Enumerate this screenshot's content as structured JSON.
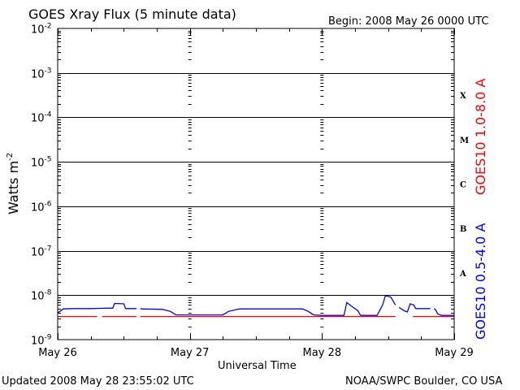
{
  "chart_data": {
    "type": "line",
    "title": "GOES Xray Flux (5 minute data)",
    "begin_label": "Begin:  2008 May 26 0000 UTC",
    "ylabel": "Watts m",
    "ylabel_superscript": "-2",
    "xlabel": "Universal Time",
    "x_tick_labels": [
      "May 26",
      "May 27",
      "May 28",
      "May 29"
    ],
    "x_range": [
      "2008-05-26 00:00",
      "2008-05-29 00:00"
    ],
    "y_scale": "log",
    "ylim": [
      1e-09,
      0.01
    ],
    "y_tick_labels": [
      {
        "base": "10",
        "exp": "-9"
      },
      {
        "base": "10",
        "exp": "-8"
      },
      {
        "base": "10",
        "exp": "-7"
      },
      {
        "base": "10",
        "exp": "-6"
      },
      {
        "base": "10",
        "exp": "-5"
      },
      {
        "base": "10",
        "exp": "-4"
      },
      {
        "base": "10",
        "exp": "-3"
      },
      {
        "base": "10",
        "exp": "-2"
      }
    ],
    "flare_classes": [
      "A",
      "B",
      "C",
      "M",
      "X"
    ],
    "grid": true,
    "series": [
      {
        "name": "GOES10 1.0-8.0 A",
        "color": "#ff0000",
        "points": [
          [
            "2008-05-26 00:00",
            3.3e-09
          ],
          [
            "2008-05-26 07:10",
            3.3e-09
          ],
          [
            "2008-05-26 07:20",
            null
          ],
          [
            "2008-05-26 08:05",
            3.3e-09
          ],
          [
            "2008-05-26 14:20",
            3.3e-09
          ],
          [
            "2008-05-26 14:30",
            null
          ],
          [
            "2008-05-26 15:00",
            3.3e-09
          ],
          [
            "2008-05-28 13:20",
            3.3e-09
          ],
          [
            "2008-05-28 13:30",
            null
          ],
          [
            "2008-05-28 16:30",
            3.3e-09
          ],
          [
            "2008-05-29 00:00",
            3.3e-09
          ]
        ]
      },
      {
        "name": "GOES10 0.5-4.0 A",
        "color": "#0000ff",
        "points": [
          [
            "2008-05-26 00:00",
            4e-09
          ],
          [
            "2008-05-26 00:30",
            4.4e-09
          ],
          [
            "2008-05-26 01:00",
            4.9e-09
          ],
          [
            "2008-05-26 03:00",
            5e-09
          ],
          [
            "2008-05-26 06:00",
            5e-09
          ],
          [
            "2008-05-26 09:00",
            5.1e-09
          ],
          [
            "2008-05-26 10:00",
            5.1e-09
          ],
          [
            "2008-05-26 10:20",
            6.5e-09
          ],
          [
            "2008-05-26 12:00",
            6.4e-09
          ],
          [
            "2008-05-26 12:20",
            5e-09
          ],
          [
            "2008-05-26 14:20",
            5e-09
          ],
          [
            "2008-05-26 14:30",
            null
          ],
          [
            "2008-05-26 15:00",
            4.9e-09
          ],
          [
            "2008-05-26 19:00",
            4.8e-09
          ],
          [
            "2008-05-26 20:30",
            4.3e-09
          ],
          [
            "2008-05-26 21:30",
            3.6e-09
          ],
          [
            "2008-05-27 06:00",
            3.6e-09
          ],
          [
            "2008-05-27 07:00",
            4.3e-09
          ],
          [
            "2008-05-27 09:00",
            4.9e-09
          ],
          [
            "2008-05-27 20:30",
            4.9e-09
          ],
          [
            "2008-05-27 21:30",
            4.3e-09
          ],
          [
            "2008-05-27 22:30",
            3.6e-09
          ],
          [
            "2008-05-28 00:00",
            3.5e-09
          ],
          [
            "2008-05-28 04:00",
            3.5e-09
          ],
          [
            "2008-05-28 04:30",
            6.8e-09
          ],
          [
            "2008-05-28 05:30",
            5.5e-09
          ],
          [
            "2008-05-28 06:30",
            4.5e-09
          ],
          [
            "2008-05-28 07:00",
            3.5e-09
          ],
          [
            "2008-05-28 10:00",
            3.5e-09
          ],
          [
            "2008-05-28 11:00",
            6e-09
          ],
          [
            "2008-05-28 11:30",
            9.8e-09
          ],
          [
            "2008-05-28 12:30",
            9e-09
          ],
          [
            "2008-05-28 13:20",
            6e-09
          ],
          [
            "2008-05-28 13:30",
            null
          ],
          [
            "2008-05-28 14:00",
            5.3e-09
          ],
          [
            "2008-05-28 15:00",
            4.4e-09
          ],
          [
            "2008-05-28 15:30",
            4.2e-09
          ],
          [
            "2008-05-28 16:00",
            6.4e-09
          ],
          [
            "2008-05-28 16:40",
            6e-09
          ],
          [
            "2008-05-28 17:00",
            5e-09
          ],
          [
            "2008-05-28 18:30",
            5e-09
          ],
          [
            "2008-05-28 19:40",
            5e-09
          ],
          [
            "2008-05-28 20:00",
            null
          ],
          [
            "2008-05-28 20:20",
            5e-09
          ],
          [
            "2008-05-28 20:40",
            4.6e-09
          ],
          [
            "2008-05-28 21:00",
            3.8e-09
          ],
          [
            "2008-05-28 21:40",
            3.5e-09
          ],
          [
            "2008-05-29 00:00",
            3.5e-09
          ]
        ]
      }
    ]
  },
  "footer": {
    "updated": "Updated 2008 May 28 23:55:02 UTC",
    "credit": "NOAA/SWPC Boulder, CO USA"
  }
}
